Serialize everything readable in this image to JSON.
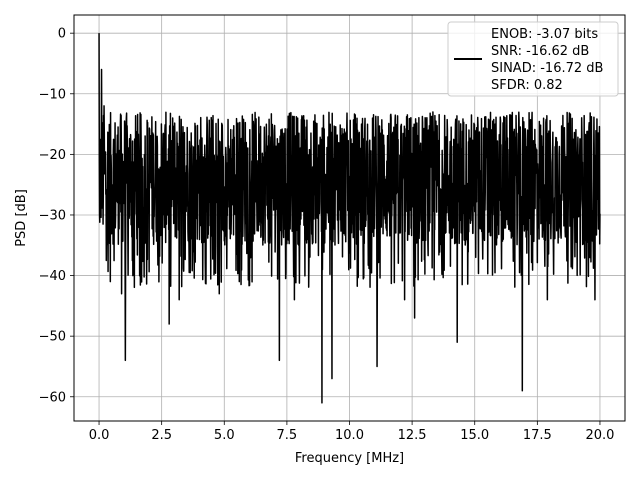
{
  "chart_data": {
    "type": "line",
    "xlabel": "Frequency [MHz]",
    "ylabel": "PSD [dB]",
    "xlim": [
      -1,
      21
    ],
    "ylim": [
      -64,
      3
    ],
    "xticks": [
      0,
      2.5,
      5,
      7.5,
      10,
      12.5,
      15,
      17.5,
      20
    ],
    "xtick_labels": [
      "0.0",
      "2.5",
      "5.0",
      "7.5",
      "10.0",
      "12.5",
      "15.0",
      "17.5",
      "20.0"
    ],
    "yticks": [
      0,
      -10,
      -20,
      -30,
      -40,
      -50,
      -60
    ],
    "ytick_labels": [
      "0",
      "−10",
      "−20",
      "−30",
      "−40",
      "−50",
      "−60"
    ],
    "grid": true,
    "legend_position": "top-right",
    "legend_lines": [
      "ENOB: -3.07 bits",
      "SNR: -16.62 dB",
      "SINAD: -16.72 dB",
      "SFDR: 0.82"
    ],
    "series_color": "#000000",
    "x_range": [
      0,
      20
    ],
    "noise_floor_db": -24,
    "noise_band_db": [
      -35,
      -13
    ],
    "peaks": [
      {
        "x": 0.0,
        "y": 0
      },
      {
        "x": 0.02,
        "y": -30
      },
      {
        "x": 0.1,
        "y": -6
      },
      {
        "x": 0.2,
        "y": -12
      }
    ],
    "dips": [
      {
        "x": 0.45,
        "y": -41
      },
      {
        "x": 0.9,
        "y": -43
      },
      {
        "x": 1.05,
        "y": -54
      },
      {
        "x": 1.35,
        "y": -40
      },
      {
        "x": 2.8,
        "y": -48
      },
      {
        "x": 3.2,
        "y": -44
      },
      {
        "x": 4.8,
        "y": -43
      },
      {
        "x": 5.6,
        "y": -41
      },
      {
        "x": 7.2,
        "y": -54
      },
      {
        "x": 7.8,
        "y": -44
      },
      {
        "x": 8.9,
        "y": -61
      },
      {
        "x": 9.3,
        "y": -57
      },
      {
        "x": 11.1,
        "y": -55
      },
      {
        "x": 12.2,
        "y": -44
      },
      {
        "x": 12.6,
        "y": -47
      },
      {
        "x": 14.3,
        "y": -51
      },
      {
        "x": 16.9,
        "y": -59
      },
      {
        "x": 17.9,
        "y": -44
      },
      {
        "x": 19.8,
        "y": -44
      }
    ]
  }
}
